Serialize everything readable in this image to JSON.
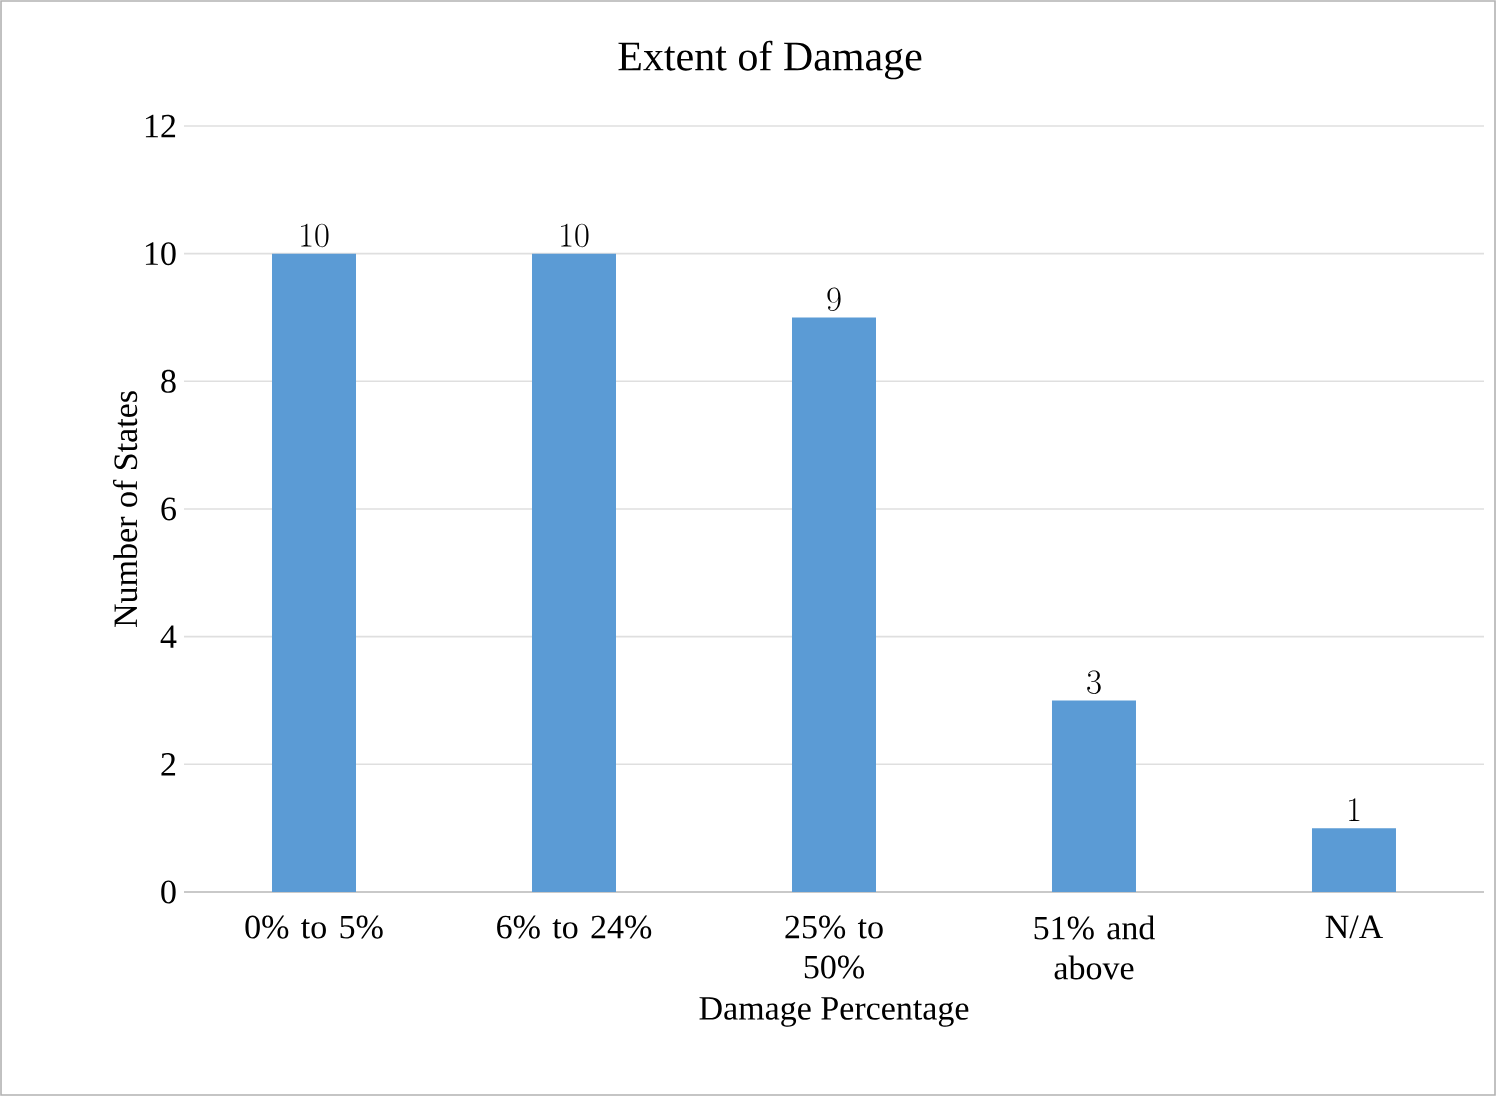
{
  "chart_data": {
    "type": "bar",
    "title": "Extent of Damage",
    "xlabel": "Damage Percentage",
    "ylabel": "Number of States",
    "categories": [
      "0% to 5%",
      "6% to 24%",
      "25% to 50%",
      "51% and above",
      "N/A"
    ],
    "values": [
      10,
      10,
      9,
      3,
      1
    ],
    "color": "#5b9bd5",
    "ylim": [
      0,
      12
    ],
    "yticks": [
      0,
      2,
      4,
      6,
      8,
      10,
      12
    ],
    "grid": "y",
    "data_labels": true
  }
}
